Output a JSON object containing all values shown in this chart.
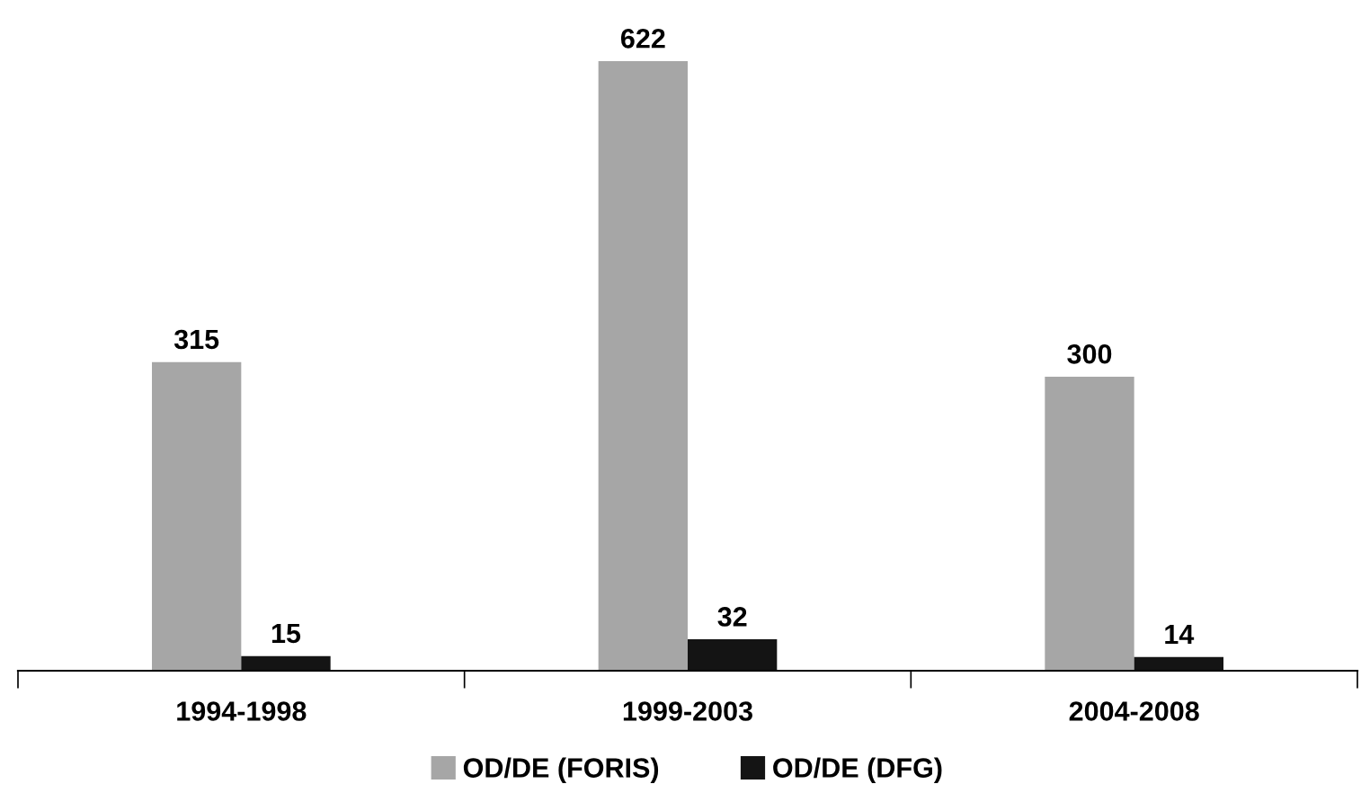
{
  "chart_data": {
    "type": "bar",
    "categories": [
      "1994-1998",
      "1999-2003",
      "2004-2008"
    ],
    "series": [
      {
        "name": "OD/DE (FORIS)",
        "color": "#a6a6a6",
        "values": [
          315,
          622,
          300
        ]
      },
      {
        "name": "OD/DE (DFG)",
        "color": "#141414",
        "values": [
          15,
          32,
          14
        ]
      }
    ],
    "data_labels": true,
    "legend": "bottom",
    "grid": false
  }
}
